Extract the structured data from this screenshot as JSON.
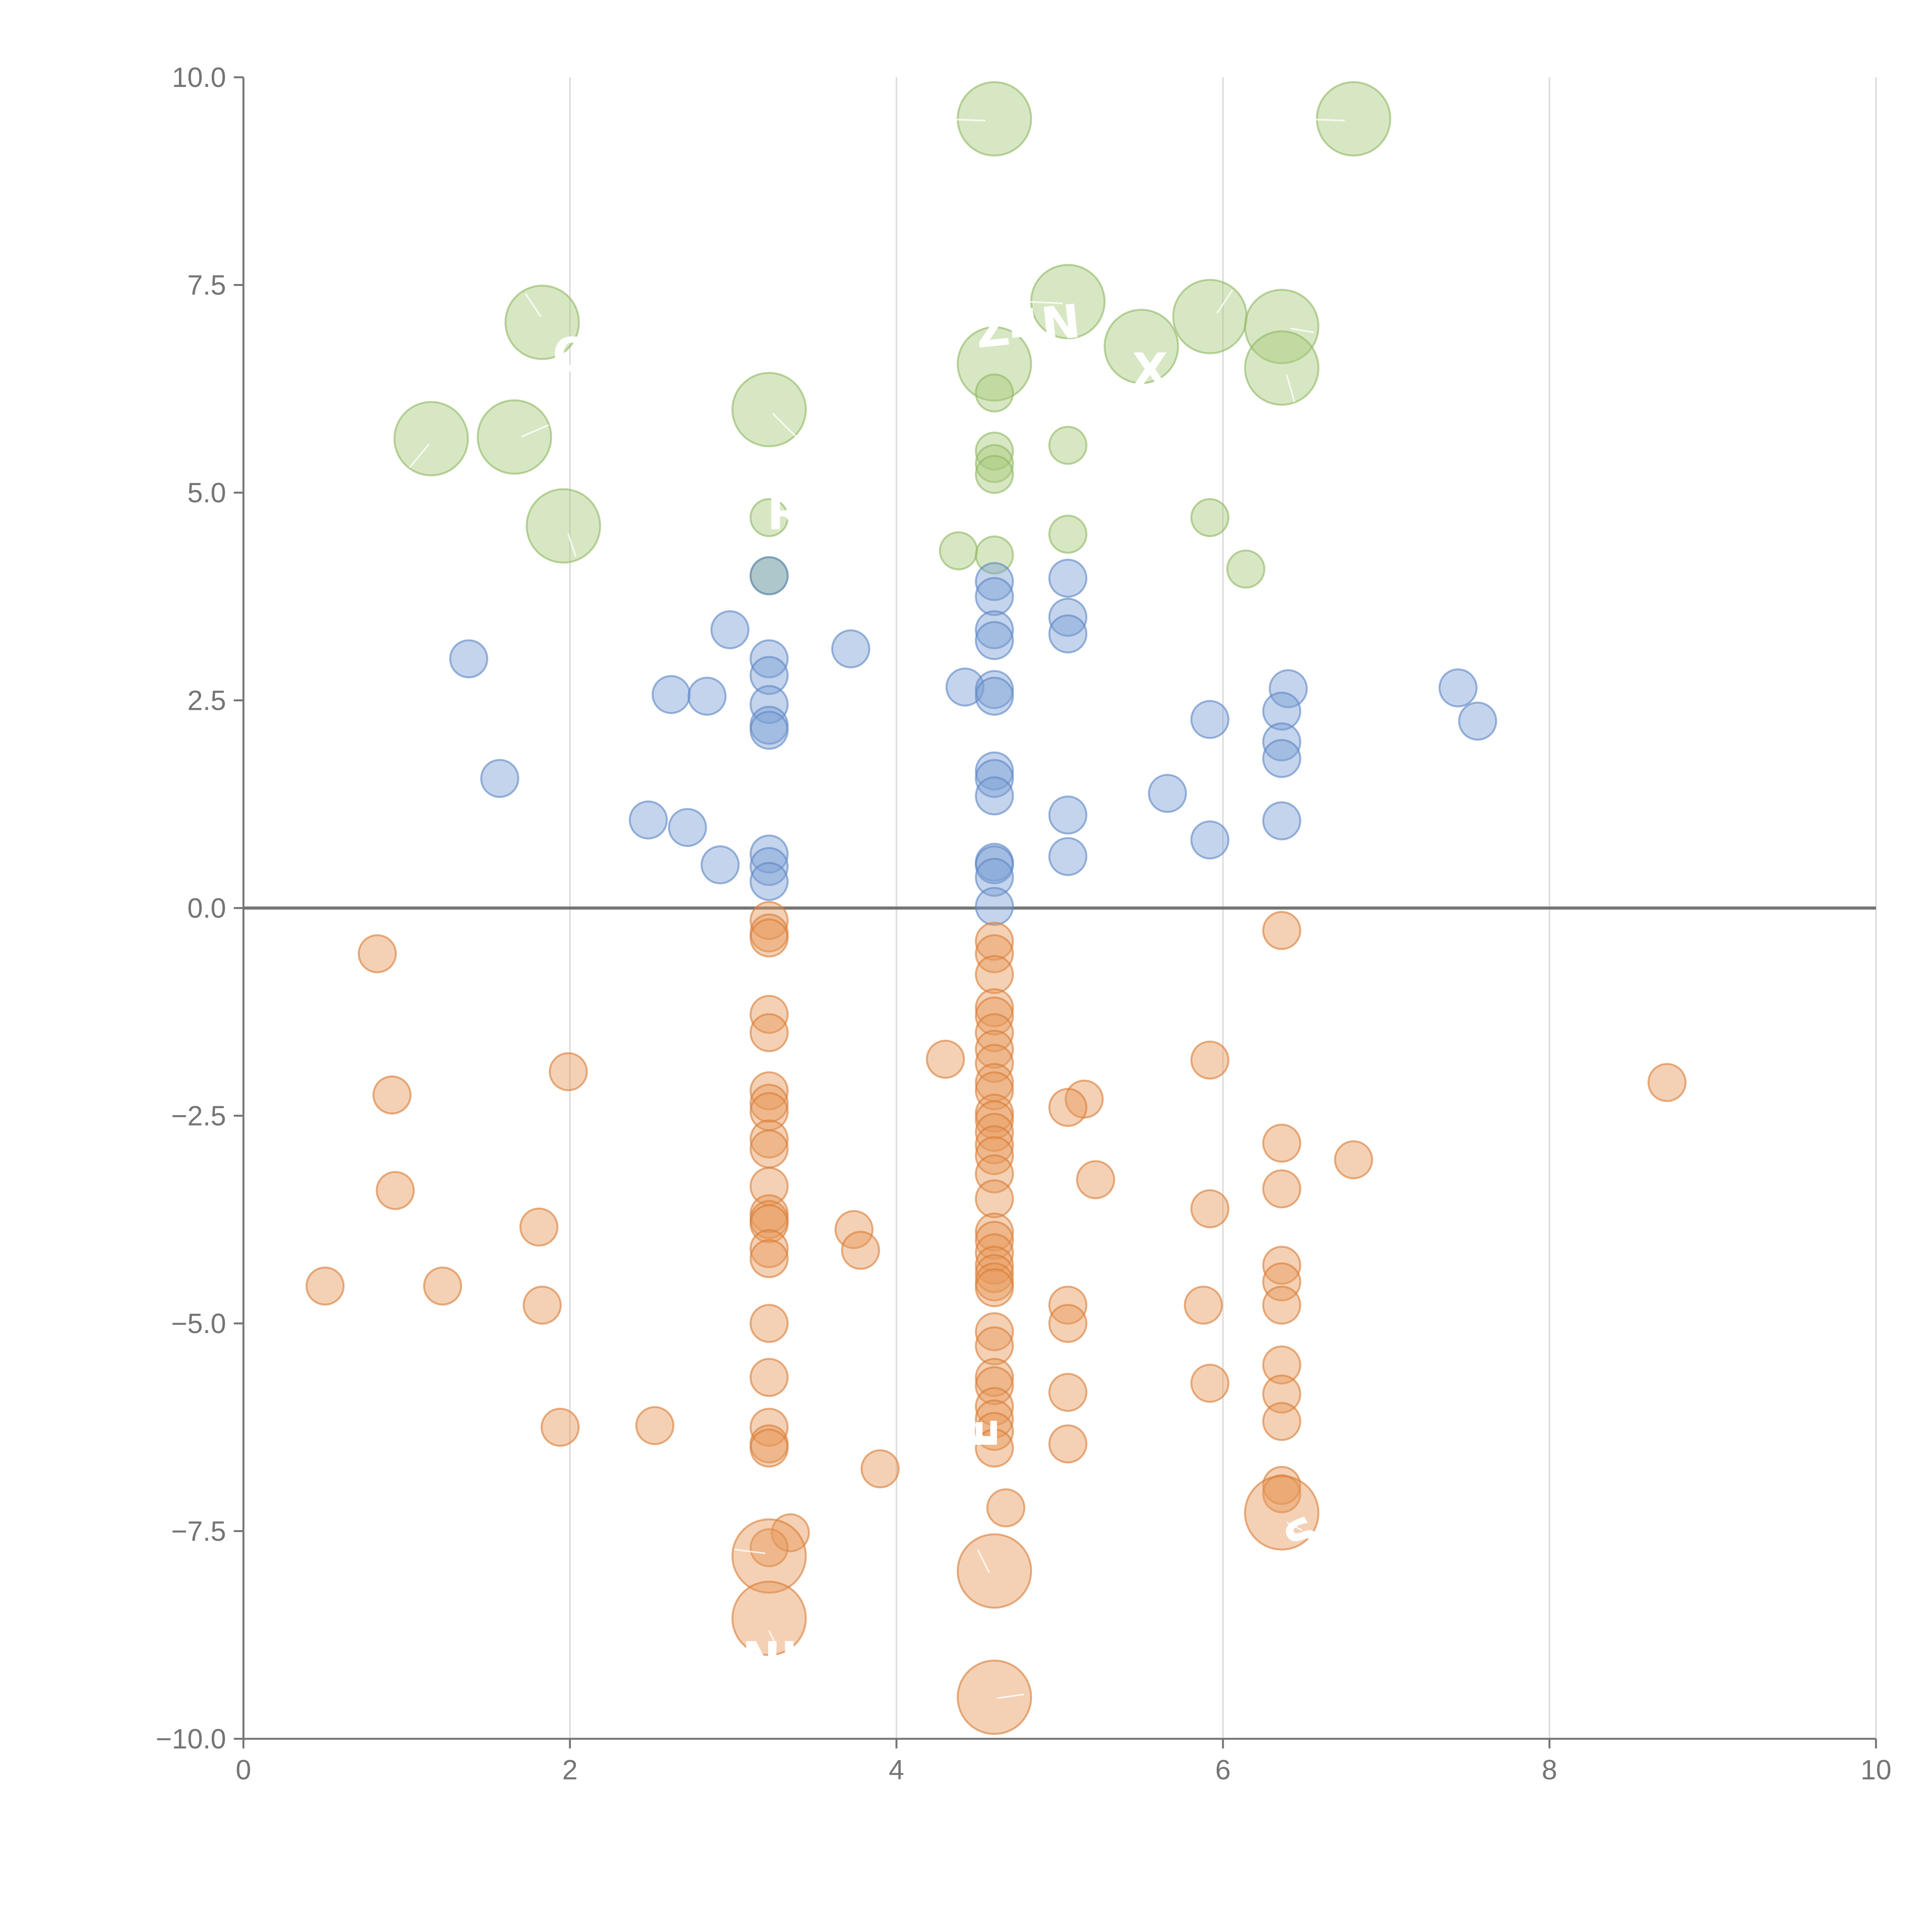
{
  "chart_data": {
    "type": "scatter",
    "title": "",
    "xlabel": "",
    "ylabel": "",
    "xlim": [
      0,
      10
    ],
    "ylim": [
      -10,
      10
    ],
    "x_ticks": [
      0,
      2,
      4,
      6,
      8,
      10
    ],
    "x_tick_labels": [
      "0",
      "2",
      "4",
      "6",
      "8",
      "10"
    ],
    "y_ticks": [
      10,
      7.5,
      5,
      2.5,
      0,
      -2.5,
      -5,
      -7.5,
      -10
    ],
    "y_tick_labels": [
      "10.0",
      "7.5",
      "5.0",
      "2.5",
      "0.0",
      "−2.5",
      "−5.0",
      "−7.5",
      "−10.0"
    ],
    "vertical_grid": true,
    "horizontal_grid": false,
    "reference_line_y": 0,
    "colors": {
      "green_fill": "#a9c97a",
      "green_stroke": "#8fb863",
      "blue_fill": "#7da0d4",
      "blue_stroke": "#5c85c4",
      "orange_fill": "#e79a5a",
      "orange_stroke": "#d97c35"
    },
    "series": [
      {
        "name": "green",
        "color_key": "green",
        "points": [
          [
            4.6,
            9.5,
            "large"
          ],
          [
            6.8,
            9.5,
            "large"
          ],
          [
            1.83,
            7.05,
            "large"
          ],
          [
            5.05,
            7.3,
            "large"
          ],
          [
            5.92,
            7.12,
            "large"
          ],
          [
            6.36,
            7.0,
            "large"
          ],
          [
            5.5,
            6.76,
            "large"
          ],
          [
            4.6,
            6.55,
            "large"
          ],
          [
            6.36,
            6.5,
            "large"
          ],
          [
            3.22,
            6.0,
            "large"
          ],
          [
            1.15,
            5.65,
            "large"
          ],
          [
            1.66,
            5.67,
            "large"
          ],
          [
            1.96,
            4.6,
            "large"
          ],
          [
            4.6,
            6.2,
            "small"
          ],
          [
            4.6,
            5.5,
            "small"
          ],
          [
            5.05,
            5.57,
            "small"
          ],
          [
            4.6,
            5.35,
            "small"
          ],
          [
            4.6,
            5.22,
            "small"
          ],
          [
            3.22,
            4.7,
            "small"
          ],
          [
            5.92,
            4.7,
            "small"
          ],
          [
            5.05,
            4.5,
            "small"
          ],
          [
            4.38,
            4.3,
            "small"
          ],
          [
            4.6,
            4.25,
            "small"
          ],
          [
            6.14,
            4.08,
            "small"
          ],
          [
            3.22,
            4.0,
            "small"
          ]
        ]
      },
      {
        "name": "blue",
        "color_key": "blue",
        "points": [
          [
            3.22,
            4.0,
            "small"
          ],
          [
            4.6,
            3.93,
            "small"
          ],
          [
            5.05,
            3.97,
            "small"
          ],
          [
            4.6,
            3.75,
            "small"
          ],
          [
            5.05,
            3.5,
            "small"
          ],
          [
            2.98,
            3.35,
            "small"
          ],
          [
            4.6,
            3.35,
            "small"
          ],
          [
            5.05,
            3.3,
            "small"
          ],
          [
            4.6,
            3.22,
            "small"
          ],
          [
            3.72,
            3.12,
            "small"
          ],
          [
            1.38,
            3.0,
            "small"
          ],
          [
            3.22,
            3.0,
            "small"
          ],
          [
            3.22,
            2.8,
            "small"
          ],
          [
            4.42,
            2.66,
            "small"
          ],
          [
            6.4,
            2.64,
            "small"
          ],
          [
            7.44,
            2.65,
            "small"
          ],
          [
            4.6,
            2.63,
            "small"
          ],
          [
            2.62,
            2.57,
            "small"
          ],
          [
            2.84,
            2.55,
            "small"
          ],
          [
            4.6,
            2.55,
            "small"
          ],
          [
            3.22,
            2.45,
            "small"
          ],
          [
            6.36,
            2.37,
            "small"
          ],
          [
            5.92,
            2.27,
            "small"
          ],
          [
            7.56,
            2.25,
            "small"
          ],
          [
            3.22,
            2.2,
            "small"
          ],
          [
            3.22,
            2.14,
            "small"
          ],
          [
            6.36,
            2.0,
            "small"
          ],
          [
            6.36,
            1.8,
            "small"
          ],
          [
            4.6,
            1.65,
            "small"
          ],
          [
            1.57,
            1.56,
            "small"
          ],
          [
            4.6,
            1.56,
            "small"
          ],
          [
            5.66,
            1.38,
            "small"
          ],
          [
            4.6,
            1.35,
            "small"
          ],
          [
            5.05,
            1.12,
            "small"
          ],
          [
            2.48,
            1.06,
            "small"
          ],
          [
            6.36,
            1.05,
            "small"
          ],
          [
            2.72,
            0.97,
            "small"
          ],
          [
            5.92,
            0.82,
            "small"
          ],
          [
            3.22,
            0.65,
            "small"
          ],
          [
            5.05,
            0.62,
            "small"
          ],
          [
            4.6,
            0.55,
            "small"
          ],
          [
            2.92,
            0.52,
            "small"
          ],
          [
            4.6,
            0.52,
            "small"
          ],
          [
            3.22,
            0.5,
            "small"
          ],
          [
            4.6,
            0.37,
            "small"
          ],
          [
            3.22,
            0.32,
            "small"
          ],
          [
            4.6,
            0.02,
            "small"
          ]
        ]
      },
      {
        "name": "orange",
        "color_key": "orange",
        "points": [
          [
            3.22,
            -0.15,
            "small"
          ],
          [
            6.36,
            -0.27,
            "small"
          ],
          [
            3.22,
            -0.3,
            "small"
          ],
          [
            3.22,
            -0.36,
            "small"
          ],
          [
            4.6,
            -0.4,
            "small"
          ],
          [
            0.82,
            -0.55,
            "small"
          ],
          [
            4.6,
            -0.55,
            "small"
          ],
          [
            4.6,
            -0.8,
            "small"
          ],
          [
            4.6,
            -1.2,
            "small"
          ],
          [
            3.22,
            -1.28,
            "small"
          ],
          [
            4.6,
            -1.3,
            "small"
          ],
          [
            3.22,
            -1.5,
            "small"
          ],
          [
            4.6,
            -1.5,
            "small"
          ],
          [
            4.6,
            -1.7,
            "small"
          ],
          [
            4.3,
            -1.82,
            "small"
          ],
          [
            5.92,
            -1.83,
            "small"
          ],
          [
            4.6,
            -1.87,
            "small"
          ],
          [
            1.99,
            -1.97,
            "small"
          ],
          [
            8.72,
            -2.1,
            "small"
          ],
          [
            4.6,
            -2.1,
            "small"
          ],
          [
            4.6,
            -2.2,
            "small"
          ],
          [
            3.22,
            -2.2,
            "small"
          ],
          [
            0.91,
            -2.25,
            "small"
          ],
          [
            5.15,
            -2.3,
            "small"
          ],
          [
            3.22,
            -2.35,
            "small"
          ],
          [
            5.05,
            -2.4,
            "small"
          ],
          [
            3.22,
            -2.45,
            "small"
          ],
          [
            4.6,
            -2.47,
            "small"
          ],
          [
            4.6,
            -2.55,
            "small"
          ],
          [
            4.6,
            -2.7,
            "small"
          ],
          [
            3.22,
            -2.78,
            "small"
          ],
          [
            6.36,
            -2.83,
            "small"
          ],
          [
            4.6,
            -2.85,
            "small"
          ],
          [
            3.22,
            -2.9,
            "small"
          ],
          [
            4.6,
            -2.98,
            "small"
          ],
          [
            6.8,
            -3.03,
            "small"
          ],
          [
            4.6,
            -3.2,
            "small"
          ],
          [
            5.22,
            -3.27,
            "small"
          ],
          [
            3.22,
            -3.35,
            "small"
          ],
          [
            6.36,
            -3.38,
            "small"
          ],
          [
            0.93,
            -3.4,
            "small"
          ],
          [
            4.6,
            -3.5,
            "small"
          ],
          [
            5.92,
            -3.62,
            "small"
          ],
          [
            3.22,
            -3.68,
            "small"
          ],
          [
            3.22,
            -3.75,
            "small"
          ],
          [
            3.22,
            -3.8,
            "small"
          ],
          [
            1.81,
            -3.84,
            "small"
          ],
          [
            3.74,
            -3.87,
            "small"
          ],
          [
            4.6,
            -3.9,
            "small"
          ],
          [
            4.6,
            -4.0,
            "small"
          ],
          [
            3.78,
            -4.12,
            "small"
          ],
          [
            3.22,
            -4.1,
            "small"
          ],
          [
            4.6,
            -4.15,
            "small"
          ],
          [
            3.22,
            -4.22,
            "small"
          ],
          [
            4.6,
            -4.3,
            "small"
          ],
          [
            6.36,
            -4.3,
            "small"
          ],
          [
            4.6,
            -4.4,
            "small"
          ],
          [
            6.36,
            -4.5,
            "small"
          ],
          [
            4.6,
            -4.5,
            "small"
          ],
          [
            0.5,
            -4.55,
            "small"
          ],
          [
            1.22,
            -4.55,
            "small"
          ],
          [
            4.6,
            -4.57,
            "small"
          ],
          [
            6.36,
            -4.78,
            "small"
          ],
          [
            5.05,
            -4.78,
            "small"
          ],
          [
            1.83,
            -4.78,
            "small"
          ],
          [
            5.88,
            -4.78,
            "small"
          ],
          [
            3.22,
            -5.0,
            "small"
          ],
          [
            5.05,
            -5.0,
            "small"
          ],
          [
            4.6,
            -5.1,
            "small"
          ],
          [
            4.6,
            -5.27,
            "small"
          ],
          [
            6.36,
            -5.5,
            "small"
          ],
          [
            3.22,
            -5.65,
            "small"
          ],
          [
            4.6,
            -5.65,
            "small"
          ],
          [
            5.92,
            -5.72,
            "small"
          ],
          [
            4.6,
            -5.75,
            "small"
          ],
          [
            5.05,
            -5.83,
            "small"
          ],
          [
            6.36,
            -5.85,
            "small"
          ],
          [
            4.6,
            -6.0,
            "small"
          ],
          [
            4.6,
            -6.15,
            "small"
          ],
          [
            6.36,
            -6.18,
            "small"
          ],
          [
            1.94,
            -6.25,
            "small"
          ],
          [
            2.52,
            -6.23,
            "small"
          ],
          [
            3.22,
            -6.25,
            "small"
          ],
          [
            4.6,
            -6.3,
            "small"
          ],
          [
            3.22,
            -6.45,
            "small"
          ],
          [
            5.05,
            -6.45,
            "small"
          ],
          [
            4.6,
            -6.5,
            "small"
          ],
          [
            3.22,
            -6.5,
            "small"
          ],
          [
            3.9,
            -6.75,
            "small"
          ],
          [
            6.36,
            -6.95,
            "small"
          ],
          [
            6.36,
            -7.05,
            "small"
          ],
          [
            4.67,
            -7.22,
            "small"
          ],
          [
            3.35,
            -7.52,
            "small"
          ],
          [
            3.22,
            -7.7,
            "small"
          ],
          [
            6.36,
            -7.28,
            "large"
          ],
          [
            3.22,
            -7.8,
            "large"
          ],
          [
            4.6,
            -7.98,
            "large"
          ],
          [
            3.22,
            -8.55,
            "large"
          ],
          [
            4.6,
            -9.5,
            "large"
          ]
        ]
      }
    ]
  }
}
